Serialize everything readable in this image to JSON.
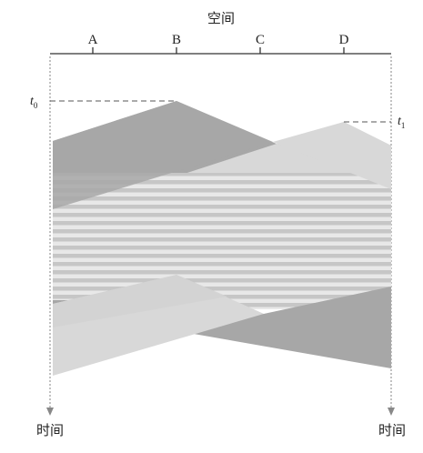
{
  "diagram": {
    "space_title": "空间",
    "stations": [
      "A",
      "B",
      "C",
      "D"
    ],
    "time_left": "时间",
    "time_right": "时间",
    "t0": {
      "symbol": "t",
      "subscript": "0"
    },
    "t1": {
      "symbol": "t",
      "subscript": "1"
    },
    "colors": {
      "frame_dark": "#a7a7a7",
      "frame_light": "#d8d8d8",
      "stripe": "#c6c6c6",
      "stripe_gap": "#e8e8e8",
      "axis": "#333333",
      "guide": "#9a9a9a"
    }
  }
}
